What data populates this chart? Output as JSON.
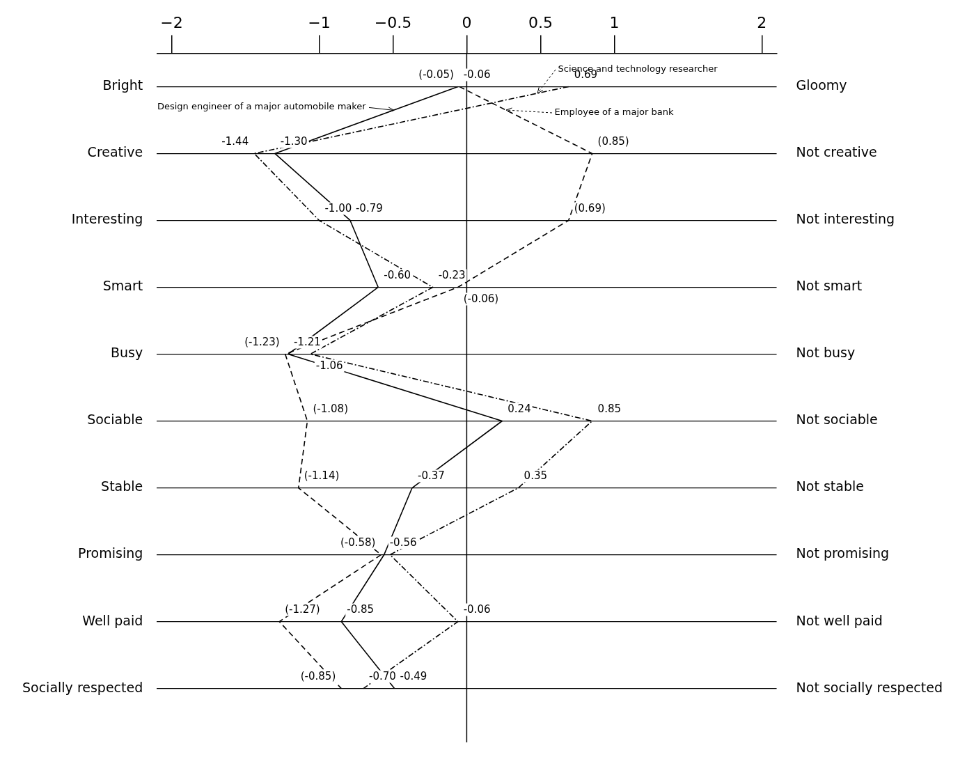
{
  "chart_data": {
    "type": "line",
    "categories": [
      "Bright",
      "Creative",
      "Interesting",
      "Smart",
      "Busy",
      "Sociable",
      "Stable",
      "Promising",
      "Well paid",
      "Socially respected"
    ],
    "y2_categories": [
      "Gloomy",
      "Not creative",
      "Not interesting",
      "Not smart",
      "Not busy",
      "Not sociable",
      "Not stable",
      "Not promising",
      "Not well paid",
      "Not socially respected"
    ],
    "xlim": [
      -2.1,
      2.1
    ],
    "xticks": [
      {
        "value": -2,
        "label": "−2"
      },
      {
        "value": -1,
        "label": "−1"
      },
      {
        "value": -0.5,
        "label": "−0.5"
      },
      0,
      0.5,
      1,
      2
    ],
    "orientation": "horizontal",
    "grid": "y",
    "marker": "none",
    "ref_lines": [
      {
        "axis": "x",
        "value": 0
      }
    ],
    "series": [
      {
        "name": "Design engineer of a major automobile maker",
        "color": "#000000",
        "line_style": "solid",
        "values": [
          -0.06,
          -1.3,
          -0.79,
          -0.6,
          -1.21,
          0.24,
          -0.37,
          -0.56,
          -0.85,
          -0.49
        ],
        "value_labels": [
          "-0.06",
          "-1.30",
          "-0.79",
          "-0.60",
          "-1.21",
          "0.24",
          "-0.37",
          "-0.56",
          "-0.85",
          "-0.49"
        ]
      },
      {
        "name": "Science and technology researcher",
        "color": "#000000",
        "line_style": "dotted",
        "values": [
          0.69,
          -1.44,
          -1.0,
          -0.23,
          -1.06,
          0.85,
          0.35,
          -0.52,
          -0.06,
          -0.7
        ],
        "value_labels": [
          "0.69",
          "-1.44",
          "-1.00",
          "-0.23",
          "-1.06",
          "0.85",
          "0.35",
          null,
          "-0.06",
          "-0.70"
        ]
      },
      {
        "name": "Employee of a major bank",
        "color": "#000000",
        "line_style": "dashed",
        "values": [
          -0.05,
          0.85,
          0.69,
          -0.06,
          -1.23,
          -1.08,
          -1.14,
          -0.58,
          -1.27,
          -0.85
        ],
        "value_labels": [
          "(-0.05)",
          "(0.85)",
          "(0.69)",
          "(-0.06)",
          "(-1.23)",
          "(-1.08)",
          "(-1.14)",
          "(-0.58)",
          "(-1.27)",
          "(-0.85)"
        ]
      }
    ]
  }
}
